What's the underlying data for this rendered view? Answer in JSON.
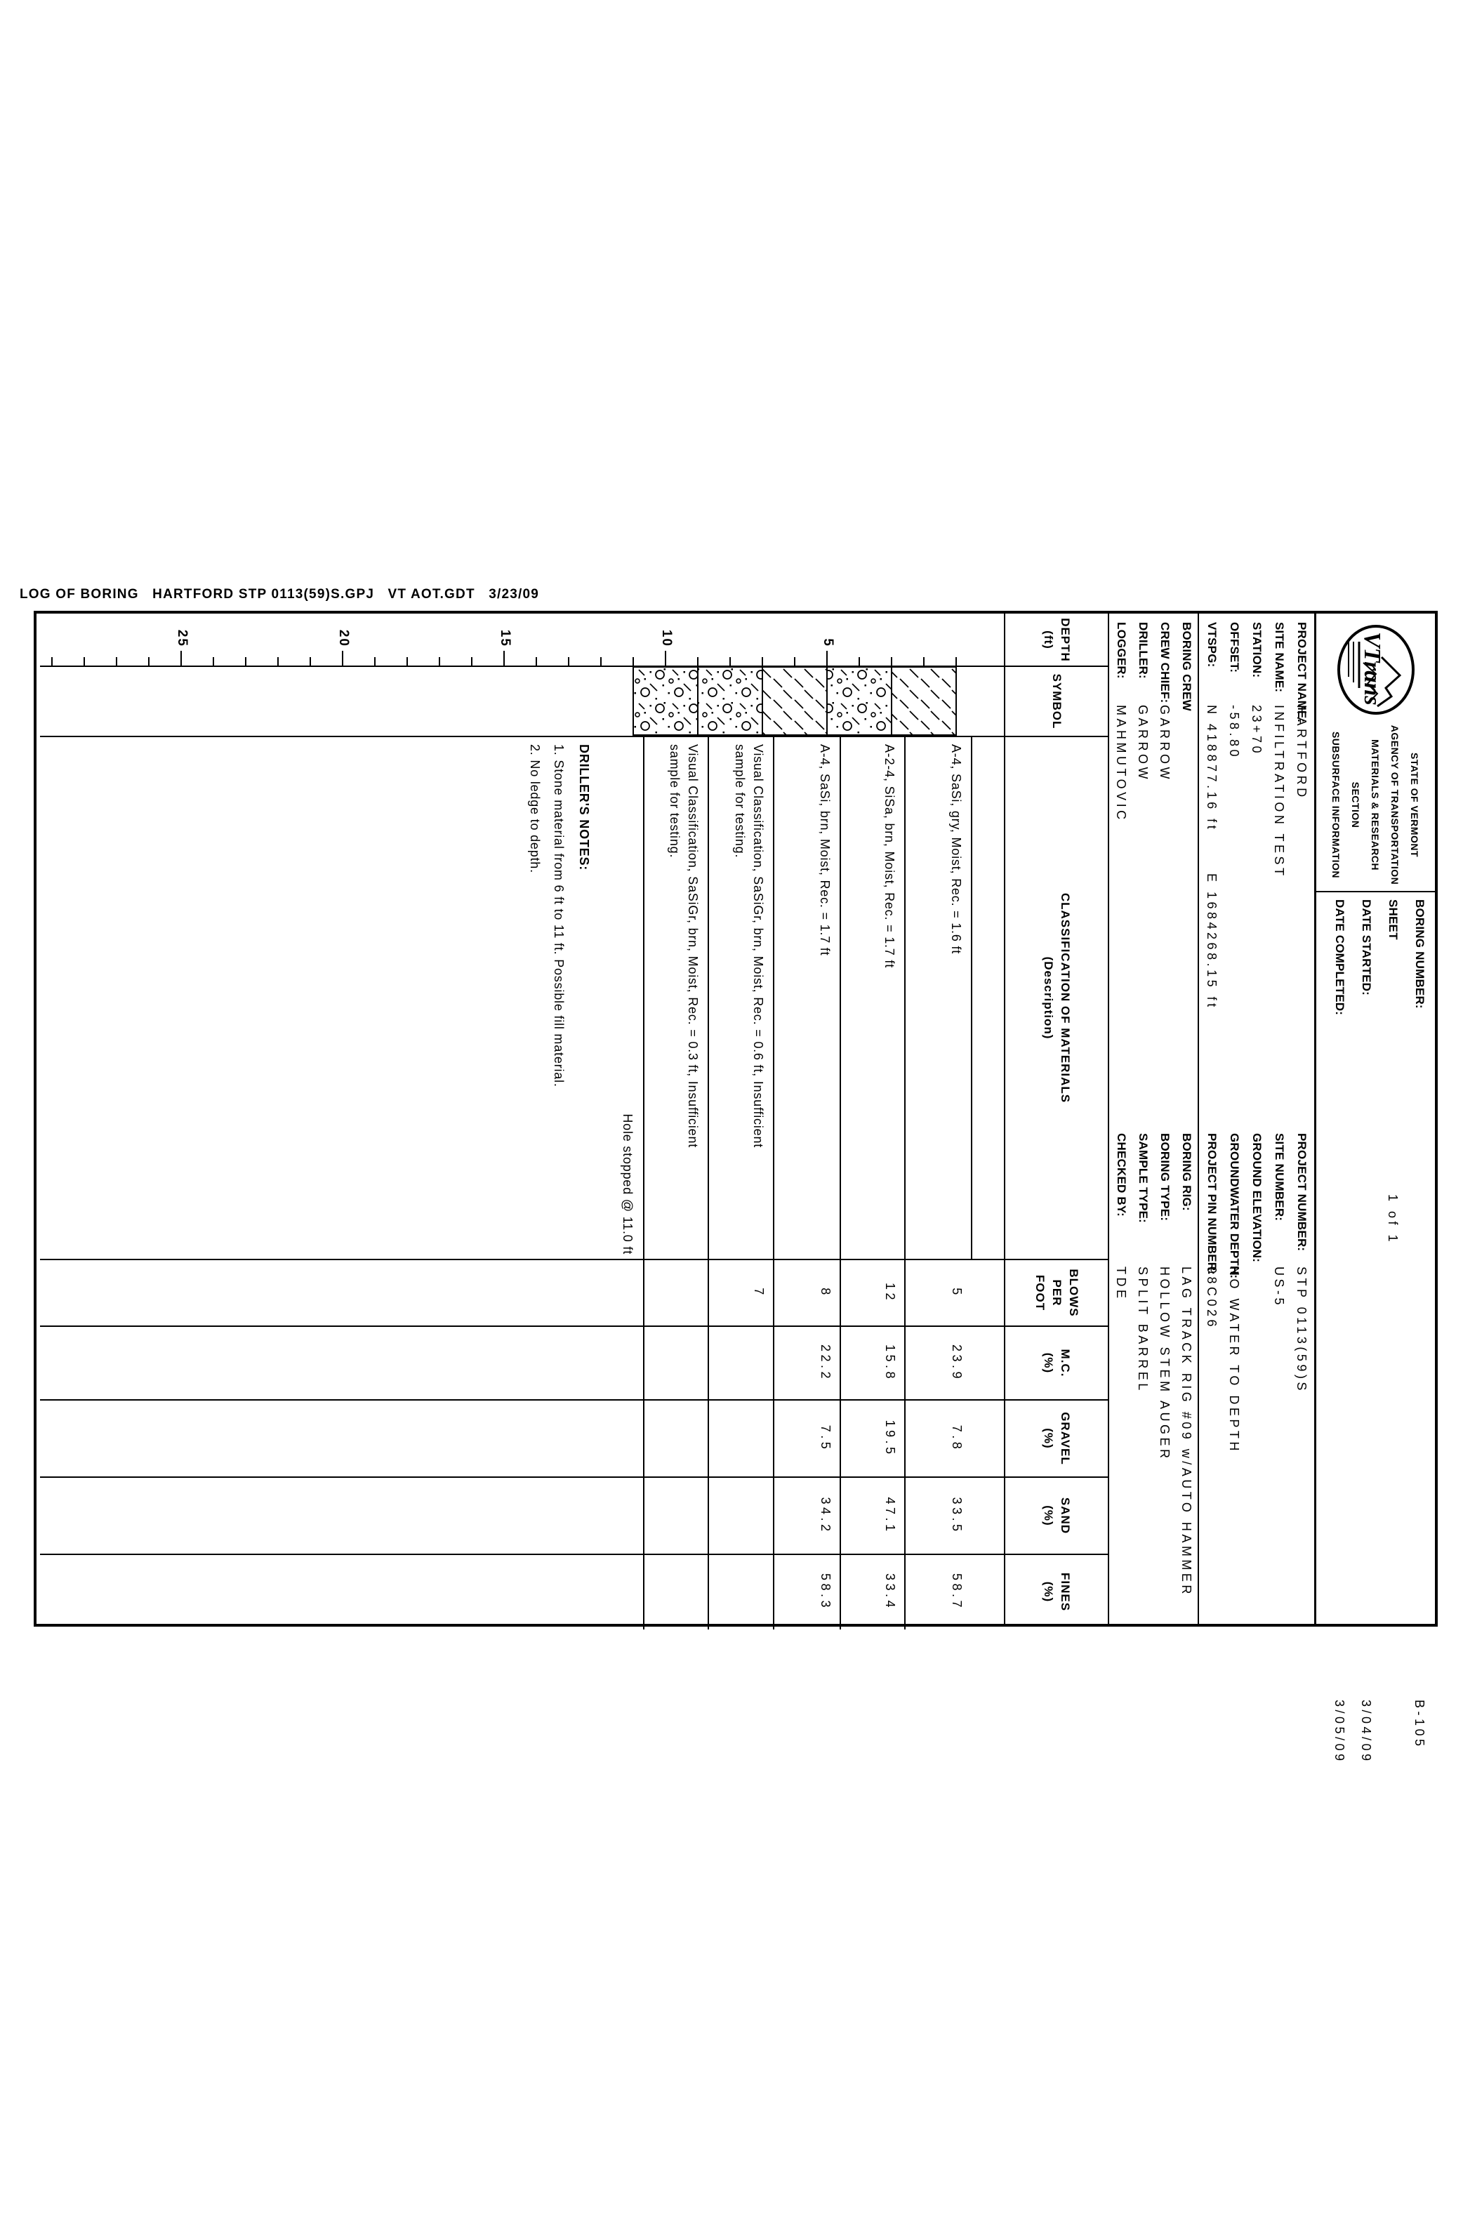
{
  "page": {
    "footer_line": "LOG OF BORING   HARTFORD STP 0113(59)S.GPJ   VT AOT.GDT   3/23/09"
  },
  "header": {
    "logo_text": "VTrans",
    "agency_lines": [
      "STATE OF VERMONT",
      "AGENCY OF TRANSPORTATION",
      "MATERIALS & RESEARCH SECTION",
      "SUBSURFACE INFORMATION"
    ],
    "fields": [
      {
        "name": "boring-number",
        "label": "BORING NUMBER:",
        "value": "B-105",
        "vx": 1150
      },
      {
        "name": "sheet",
        "label": "SHEET",
        "value": "1 of 1",
        "vx": 430
      },
      {
        "name": "date-started",
        "label": "DATE STARTED:",
        "value": "3/04/09",
        "vx": 1150
      },
      {
        "name": "date-completed",
        "label": "DATE COMPLETED:",
        "value": "3/05/09",
        "vx": 1150
      }
    ]
  },
  "project": {
    "left": [
      {
        "name": "project-name",
        "label": "PROJECT NAME:",
        "value": "HARTFORD"
      },
      {
        "name": "site-name",
        "label": "SITE NAME:",
        "value": "INFILTRATION TEST"
      },
      {
        "name": "station",
        "label": "STATION:",
        "value": "23+70"
      },
      {
        "name": "offset",
        "label": "OFFSET:",
        "value": "-58.80"
      },
      {
        "name": "vtspg",
        "label": "VTSPG:",
        "value": "N 418877.16 ft",
        "value2": "E 1684268.15 ft"
      }
    ],
    "right": [
      {
        "name": "project-number",
        "label": "PROJECT NUMBER:",
        "value": "STP 0113(59)S"
      },
      {
        "name": "site-number",
        "label": "SITE NUMBER:",
        "value": "US-5"
      },
      {
        "name": "ground-elevation",
        "label": "GROUND ELEVATION:",
        "value": ""
      },
      {
        "name": "groundwater-depth",
        "label": "GROUNDWATER DEPTH:",
        "value": "NO WATER TO DEPTH"
      },
      {
        "name": "project-pin-number",
        "label": "PROJECT PIN NUMBER:",
        "value": "98C026"
      }
    ]
  },
  "crew": {
    "left": [
      {
        "name": "boring-crew",
        "label": "BORING CREW",
        "value": ""
      },
      {
        "name": "crew-chief",
        "label": "CREW CHIEF:",
        "value": "GARROW"
      },
      {
        "name": "driller",
        "label": "DRILLER:",
        "value": "GARROW"
      },
      {
        "name": "logger",
        "label": "LOGGER:",
        "value": "MAHMUTOVIC"
      }
    ],
    "right": [
      {
        "name": "boring-rig",
        "label": "BORING RIG:",
        "value": "LAG TRACK RIG #09 w/AUTO HAMMER"
      },
      {
        "name": "boring-type",
        "label": "BORING TYPE:",
        "value": "HOLLOW STEM AUGER"
      },
      {
        "name": "sample-type",
        "label": "SAMPLE TYPE:",
        "value": "SPLIT BARREL"
      },
      {
        "name": "checked-by",
        "label": "CHECKED BY:",
        "value": "TDE"
      }
    ]
  },
  "log_table": {
    "columns": [
      {
        "lines": [
          "DEPTH",
          "(ft)"
        ]
      },
      {
        "lines": [
          "SYMBOL"
        ]
      },
      {
        "lines": [
          "CLASSIFICATION OF MATERIALS",
          "(Description)"
        ]
      },
      {
        "lines": [
          "BLOWS",
          "PER",
          "FOOT"
        ]
      },
      {
        "lines": [
          "M.C.",
          "(%)"
        ]
      },
      {
        "lines": [
          "GRAVEL",
          "(%)"
        ]
      },
      {
        "lines": [
          "SAND",
          "(%)"
        ]
      },
      {
        "lines": [
          "FINES",
          "(%)"
        ]
      }
    ],
    "depth_tick_labels": [
      5,
      10,
      15,
      20,
      25
    ],
    "samples": [
      {
        "description": "A-4, SaSi, gry, Moist, Rec. = 1.6 ft",
        "description2": "",
        "blows": "5",
        "mc": "23.9",
        "gravel": "7.8",
        "sand": "33.5",
        "fines": "58.7",
        "symbol": "silt",
        "top_ft": 1,
        "bottom_ft": 3
      },
      {
        "description": "A-2-4, SiSa, brn, Moist, Rec. = 1.7 ft",
        "description2": "",
        "blows": "12",
        "mc": "15.8",
        "gravel": "19.5",
        "sand": "47.1",
        "fines": "33.4",
        "symbol": "gravel",
        "top_ft": 3,
        "bottom_ft": 5
      },
      {
        "description": "A-4, SaSi, brn, Moist, Rec. = 1.7 ft",
        "description2": "",
        "blows": "8",
        "mc": "22.2",
        "gravel": "7.5",
        "sand": "34.2",
        "fines": "58.3",
        "symbol": "silt",
        "top_ft": 5,
        "bottom_ft": 7
      },
      {
        "description": "Visual Classification, SaSiGr, brn, Moist, Rec. = 0.6 ft, Insufficient",
        "description2": "sample for testing.",
        "blows": "7",
        "mc": "",
        "gravel": "",
        "sand": "",
        "fines": "",
        "symbol": "gravel",
        "top_ft": 7,
        "bottom_ft": 9
      },
      {
        "description": "Visual Classification, SaSiGr, brn, Moist, Rec. = 0.3 ft, Insufficient",
        "description2": "sample for testing.",
        "blows": "",
        "mc": "",
        "gravel": "",
        "sand": "",
        "fines": "",
        "symbol": "gravel",
        "top_ft": 9,
        "bottom_ft": 11
      }
    ],
    "hole_note": "Hole stopped @ 11.0 ft",
    "notes_title": "DRILLER'S NOTES:",
    "notes": [
      "1. Stone material from 6 ft to 11 ft. Possible fill material.",
      "2. No ledge to depth."
    ]
  }
}
